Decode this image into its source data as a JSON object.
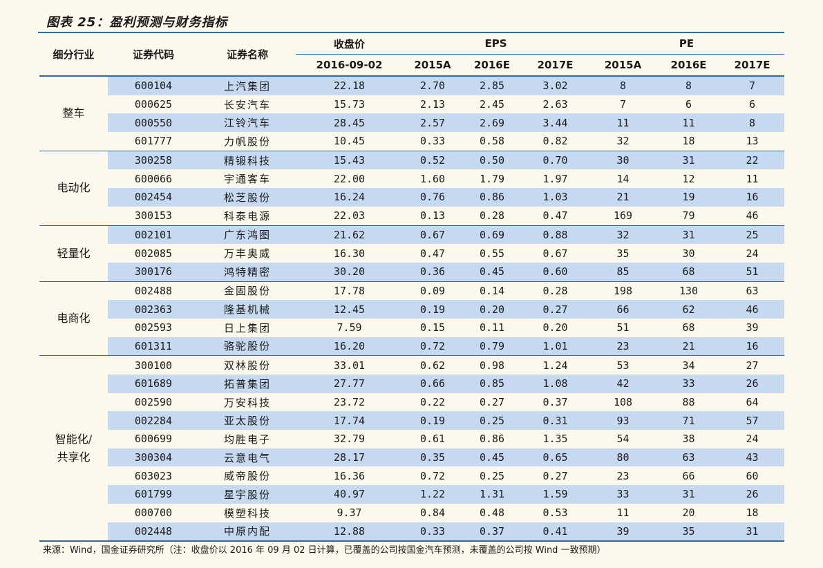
{
  "title": "图表 25：盈利预测与财务指标",
  "headers": {
    "segment": "细分行业",
    "code": "证券代码",
    "name": "证券名称",
    "close": "收盘价",
    "close_date": "2016-09-02",
    "eps": "EPS",
    "pe": "PE",
    "years": [
      "2015A",
      "2016E",
      "2017E"
    ]
  },
  "groups": [
    {
      "label": "整车",
      "rows": [
        [
          "600104",
          "上汽集团",
          "22.18",
          "2.70",
          "2.85",
          "3.02",
          "8",
          "8",
          "7"
        ],
        [
          "000625",
          "长安汽车",
          "15.73",
          "2.13",
          "2.45",
          "2.63",
          "7",
          "6",
          "6"
        ],
        [
          "000550",
          "江铃汽车",
          "28.45",
          "2.57",
          "2.69",
          "3.44",
          "11",
          "11",
          "8"
        ],
        [
          "601777",
          "力帆股份",
          "10.45",
          "0.33",
          "0.58",
          "0.82",
          "32",
          "18",
          "13"
        ]
      ]
    },
    {
      "label": "电动化",
      "rows": [
        [
          "300258",
          "精锻科技",
          "15.43",
          "0.52",
          "0.50",
          "0.70",
          "30",
          "31",
          "22"
        ],
        [
          "600066",
          "宇通客车",
          "22.00",
          "1.60",
          "1.79",
          "1.97",
          "14",
          "12",
          "11"
        ],
        [
          "002454",
          "松芝股份",
          "16.24",
          "0.76",
          "0.86",
          "1.03",
          "21",
          "19",
          "16"
        ],
        [
          "300153",
          "科泰电源",
          "22.03",
          "0.13",
          "0.28",
          "0.47",
          "169",
          "79",
          "46"
        ]
      ]
    },
    {
      "label": "轻量化",
      "rows": [
        [
          "002101",
          "广东鸿图",
          "21.62",
          "0.67",
          "0.69",
          "0.88",
          "32",
          "31",
          "25"
        ],
        [
          "002085",
          "万丰奥威",
          "16.30",
          "0.47",
          "0.55",
          "0.67",
          "35",
          "30",
          "24"
        ],
        [
          "300176",
          "鸿特精密",
          "30.20",
          "0.36",
          "0.45",
          "0.60",
          "85",
          "68",
          "51"
        ]
      ]
    },
    {
      "label": "电商化",
      "rows": [
        [
          "002488",
          "金固股份",
          "17.78",
          "0.09",
          "0.14",
          "0.28",
          "198",
          "130",
          "63"
        ],
        [
          "002363",
          "隆基机械",
          "12.45",
          "0.19",
          "0.20",
          "0.27",
          "66",
          "62",
          "46"
        ],
        [
          "002593",
          "日上集团",
          "7.59",
          "0.15",
          "0.11",
          "0.20",
          "51",
          "68",
          "39"
        ],
        [
          "601311",
          "骆驼股份",
          "16.20",
          "0.72",
          "0.79",
          "1.01",
          "23",
          "21",
          "16"
        ]
      ]
    },
    {
      "label": "智能化/共享化",
      "rows": [
        [
          "300100",
          "双林股份",
          "33.01",
          "0.62",
          "0.98",
          "1.24",
          "53",
          "34",
          "27"
        ],
        [
          "601689",
          "拓普集团",
          "27.77",
          "0.66",
          "0.85",
          "1.08",
          "42",
          "33",
          "26"
        ],
        [
          "002590",
          "万安科技",
          "23.72",
          "0.22",
          "0.27",
          "0.37",
          "108",
          "88",
          "64"
        ],
        [
          "002284",
          "亚太股份",
          "17.74",
          "0.19",
          "0.25",
          "0.31",
          "93",
          "71",
          "57"
        ],
        [
          "600699",
          "均胜电子",
          "32.79",
          "0.61",
          "0.86",
          "1.35",
          "54",
          "38",
          "24"
        ],
        [
          "300304",
          "云意电气",
          "28.17",
          "0.35",
          "0.45",
          "0.65",
          "80",
          "63",
          "43"
        ],
        [
          "603023",
          "威帝股份",
          "16.36",
          "0.72",
          "0.25",
          "0.27",
          "23",
          "66",
          "60"
        ],
        [
          "601799",
          "星宇股份",
          "40.97",
          "1.22",
          "1.31",
          "1.59",
          "33",
          "31",
          "26"
        ],
        [
          "000700",
          "模塑科技",
          "9.37",
          "0.84",
          "0.48",
          "0.53",
          "11",
          "20",
          "18"
        ],
        [
          "002448",
          "中原内配",
          "12.88",
          "0.33",
          "0.37",
          "0.41",
          "39",
          "35",
          "31"
        ]
      ]
    }
  ],
  "footer": "来源：Wind，国金证券研究所（注：收盘价以 2016 年 09 月 02 日计算，已覆盖的公司按国金汽车预测，未覆盖的公司按 Wind 一致预期）",
  "colors": {
    "rule": "#2f6aa8",
    "stripe": "#c6d9f1",
    "background": "#fdf8ec"
  }
}
